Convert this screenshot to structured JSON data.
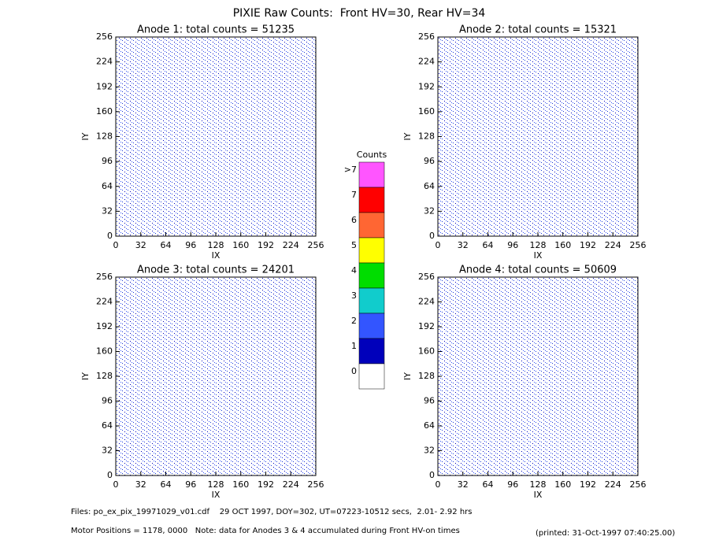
{
  "title": "PIXIE Raw Counts:  Front HV=30, Rear HV=34",
  "chart_data": [
    {
      "type": "heatmap",
      "title": "Anode 1: total counts = 51235",
      "x_label": "IX",
      "y_label": "IY",
      "xlim": [
        0,
        256
      ],
      "ylim": [
        0,
        256
      ],
      "xticks": [
        0,
        32,
        64,
        96,
        128,
        160,
        192,
        224,
        256
      ],
      "yticks": [
        0,
        32,
        64,
        96,
        128,
        160,
        192,
        224,
        256
      ]
    },
    {
      "type": "heatmap",
      "title": "Anode 2: total counts = 15321",
      "x_label": "IX",
      "y_label": "IY",
      "xlim": [
        0,
        256
      ],
      "ylim": [
        0,
        256
      ],
      "xticks": [
        0,
        32,
        64,
        96,
        128,
        160,
        192,
        224,
        256
      ],
      "yticks": [
        0,
        32,
        64,
        96,
        128,
        160,
        192,
        224,
        256
      ]
    },
    {
      "type": "heatmap",
      "title": "Anode 3: total counts = 24201",
      "x_label": "IX",
      "y_label": "IY",
      "xlim": [
        0,
        256
      ],
      "ylim": [
        0,
        256
      ],
      "xticks": [
        0,
        32,
        64,
        96,
        128,
        160,
        192,
        224,
        256
      ],
      "yticks": [
        0,
        32,
        64,
        96,
        128,
        160,
        192,
        224,
        256
      ]
    },
    {
      "type": "heatmap",
      "title": "Anode 4: total counts = 50609",
      "x_label": "IX",
      "y_label": "IY",
      "xlim": [
        0,
        256
      ],
      "ylim": [
        0,
        256
      ],
      "xticks": [
        0,
        32,
        64,
        96,
        128,
        160,
        192,
        224,
        256
      ],
      "yticks": [
        0,
        32,
        64,
        96,
        128,
        160,
        192,
        224,
        256
      ]
    }
  ],
  "colorbar": {
    "title": "Counts",
    "levels": [
      {
        "label": ">7",
        "color": "#ff55ff"
      },
      {
        "label": "7",
        "color": "#ff0000"
      },
      {
        "label": "6",
        "color": "#ff6633"
      },
      {
        "label": "5",
        "color": "#ffff00"
      },
      {
        "label": "4",
        "color": "#00dd00"
      },
      {
        "label": "3",
        "color": "#11cccc"
      },
      {
        "label": "2",
        "color": "#3355ff"
      },
      {
        "label": "1",
        "color": "#0000bb"
      },
      {
        "label": "0",
        "color": "#ffffff"
      }
    ]
  },
  "footer": [
    "Files: po_ex_pix_19971029_v01.cdf    29 OCT 1997, DOY=302, UT=07223-10512 secs,  2.01- 2.92 hrs",
    "Motor Positions = 1178, 0000   Note: data for Anodes 3 & 4 accumulated during Front HV-on times",
    "(printed: 31-Oct-1997 07:40:25.00)"
  ]
}
